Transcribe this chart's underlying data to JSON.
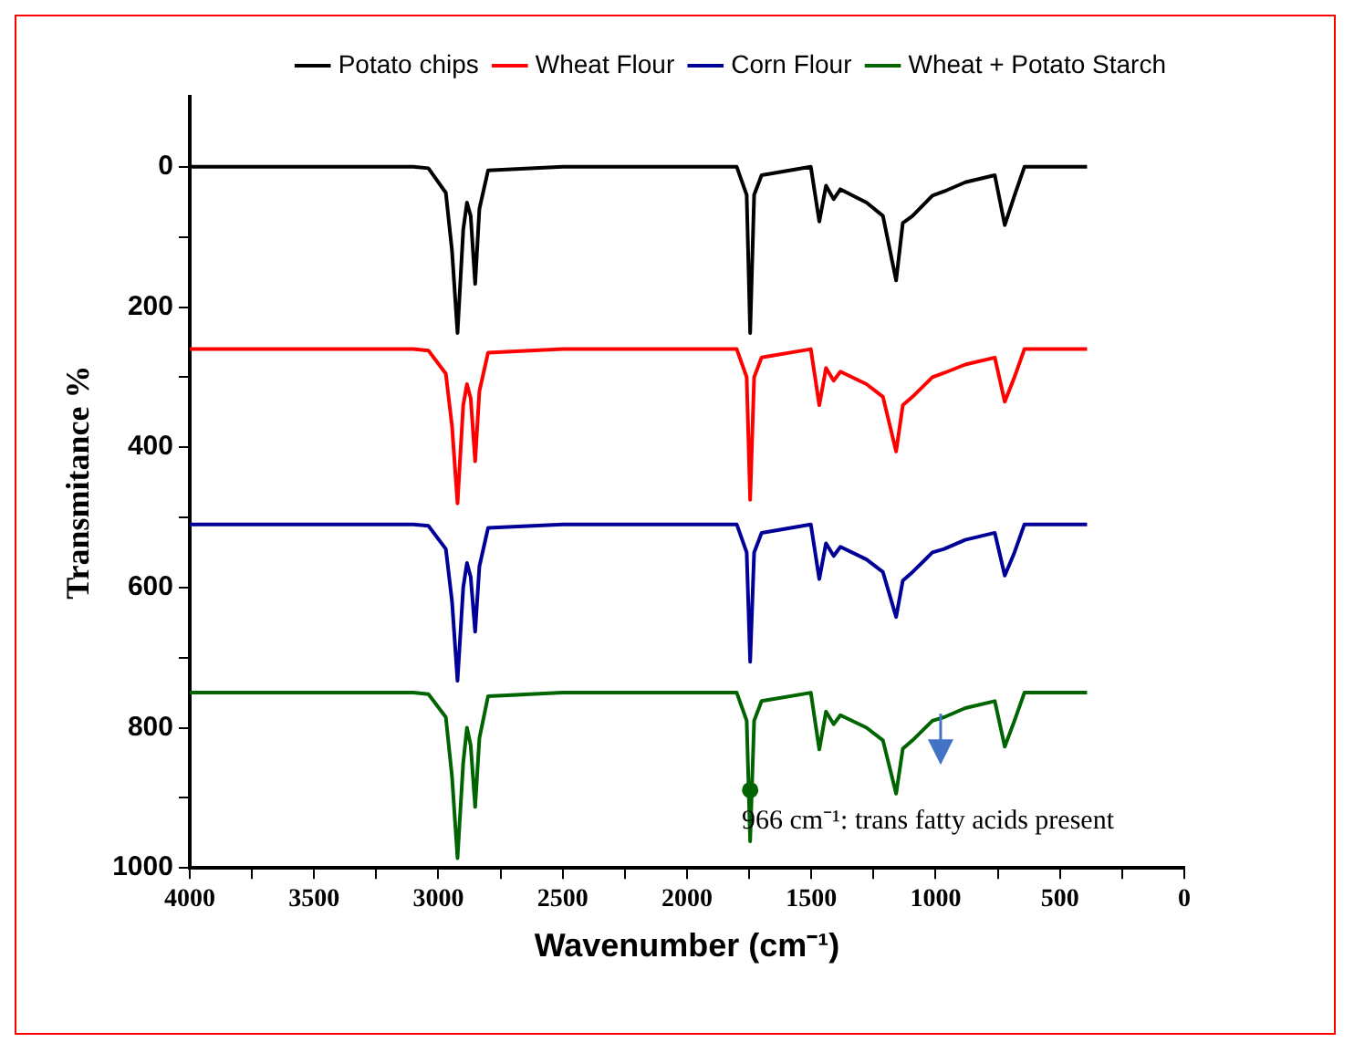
{
  "chart_data": {
    "type": "line",
    "xlabel": "Wavenumber (cm⁻¹)",
    "ylabel": "Transmitance %",
    "x": [
      4000,
      3500,
      3100,
      3040,
      2970,
      2945,
      2923,
      2900,
      2885,
      2870,
      2852,
      2835,
      2800,
      2500,
      2000,
      1800,
      1760,
      1746,
      1730,
      1700,
      1502,
      1468,
      1441,
      1410,
      1383,
      1278,
      1212,
      1159,
      1132,
      1093,
      1013,
      966,
      881,
      762,
      722,
      683,
      643,
      391
    ],
    "series": [
      {
        "name": "Potato chips",
        "color": "#000000",
        "values": [
          0,
          0,
          0,
          2,
          37,
          120,
          237,
          90,
          51,
          70,
          167,
          60,
          5,
          0,
          0,
          0,
          40,
          237,
          40,
          12,
          0,
          78,
          27,
          46,
          32,
          51,
          70,
          162,
          80,
          70,
          41,
          35,
          22,
          12,
          83,
          41,
          0,
          0
        ]
      },
      {
        "name": "Wheat Flour",
        "color": "#ff0000",
        "values": [
          260,
          260,
          260,
          262,
          295,
          370,
          480,
          340,
          310,
          330,
          420,
          320,
          265,
          260,
          260,
          260,
          300,
          475,
          300,
          272,
          260,
          340,
          287,
          305,
          292,
          310,
          328,
          406,
          340,
          328,
          300,
          294,
          282,
          272,
          335,
          300,
          260,
          260
        ]
      },
      {
        "name": "Corn Flour",
        "color": "#000099",
        "values": [
          510,
          510,
          510,
          512,
          545,
          620,
          733,
          600,
          565,
          585,
          663,
          570,
          515,
          510,
          510,
          510,
          550,
          706,
          550,
          522,
          510,
          588,
          537,
          555,
          542,
          560,
          578,
          642,
          590,
          578,
          550,
          545,
          532,
          522,
          583,
          550,
          510,
          510
        ]
      },
      {
        "name": "Wheat + Potato Starch",
        "color": "#006400",
        "values": [
          750,
          750,
          750,
          752,
          785,
          870,
          986,
          850,
          800,
          825,
          913,
          815,
          755,
          750,
          750,
          750,
          790,
          962,
          790,
          762,
          750,
          831,
          777,
          795,
          782,
          800,
          818,
          894,
          830,
          818,
          790,
          785,
          772,
          762,
          827,
          790,
          750,
          750
        ]
      },
      {
        "type": "scatter",
        "color": "#006400",
        "x": [
          1746
        ],
        "values": [
          889
        ],
        "marker": "circle"
      }
    ],
    "xlim": [
      4000,
      0
    ],
    "xticks": [
      4000,
      {
        "value": 3750,
        "label": null
      },
      3500,
      {
        "value": 3250,
        "label": null
      },
      3000,
      {
        "value": 2750,
        "label": null
      },
      2500,
      {
        "value": 2250,
        "label": null
      },
      2000,
      {
        "value": 1750,
        "label": null
      },
      1500,
      {
        "value": 1250,
        "label": null
      },
      1000,
      {
        "value": 750,
        "label": null
      },
      500,
      {
        "value": 250,
        "label": null
      },
      0
    ],
    "ylim": [
      1000,
      -100
    ],
    "yticks": [
      0,
      {
        "value": 100,
        "label": null
      },
      200,
      {
        "value": 300,
        "label": null
      },
      400,
      {
        "value": 500,
        "label": null
      },
      600,
      {
        "value": 700,
        "label": null
      },
      800,
      {
        "value": 900,
        "label": null
      },
      1000
    ],
    "annotations": [
      "966 cm⁻¹: trans fatty acids present"
    ],
    "legend": "top right",
    "grid": false,
    "marker": "none",
    "line_style": "solid"
  }
}
